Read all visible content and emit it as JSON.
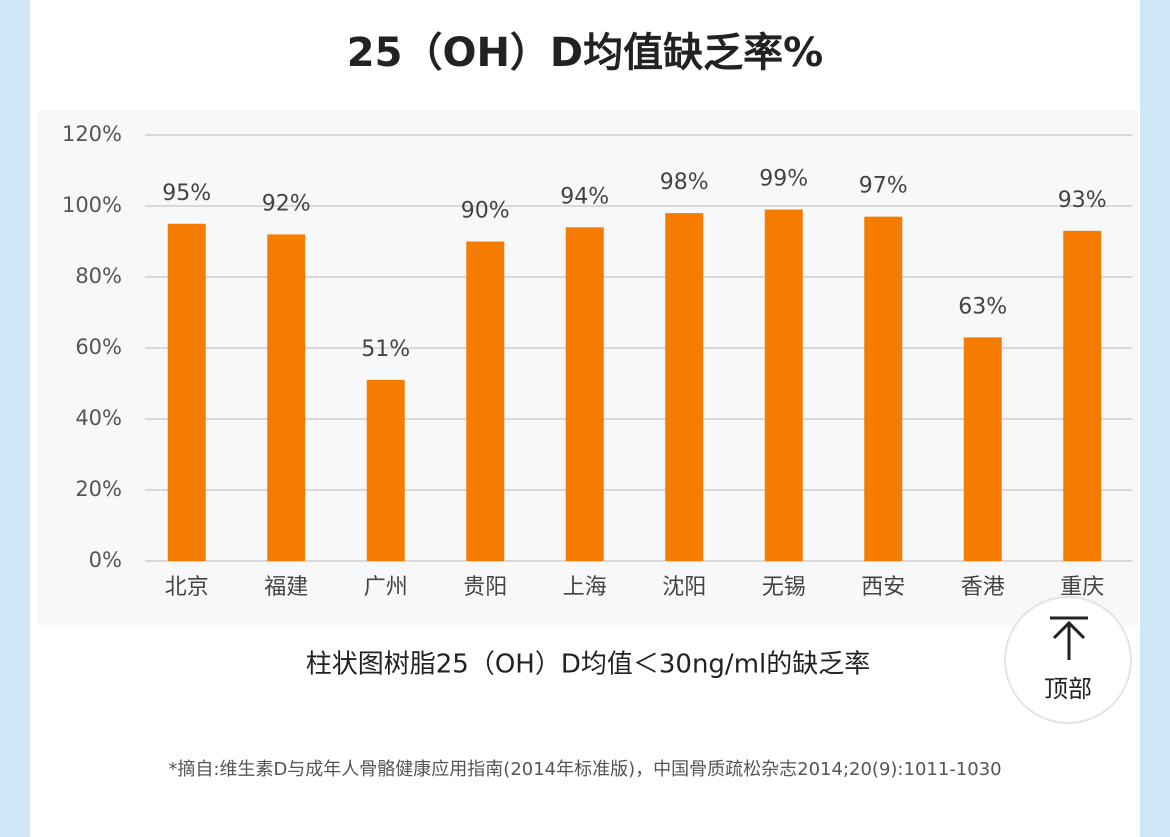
{
  "chart_data": {
    "type": "bar",
    "title": "25（OH）D均值缺乏率%",
    "categories": [
      "北京",
      "福建",
      "广州",
      "贵阳",
      "上海",
      "沈阳",
      "无锡",
      "西安",
      "香港",
      "重庆"
    ],
    "values": [
      95,
      92,
      51,
      90,
      94,
      98,
      99,
      97,
      63,
      93
    ],
    "value_labels": [
      "95%",
      "92%",
      "51%",
      "90%",
      "94%",
      "98%",
      "99%",
      "97%",
      "63%",
      "93%"
    ],
    "color": "#f57c00",
    "ylim": [
      0,
      120
    ],
    "yticks": [
      {
        "value": 0,
        "label": "0%"
      },
      {
        "value": 20,
        "label": "20%"
      },
      {
        "value": 40,
        "label": "40%"
      },
      {
        "value": 60,
        "label": "60%"
      },
      {
        "value": 80,
        "label": "80%"
      },
      {
        "value": 100,
        "label": "100%"
      },
      {
        "value": 120,
        "label": "120%"
      }
    ],
    "grid": true
  },
  "caption": "柱状图树脂25（OH）D均值＜30ng/ml的缺乏率",
  "footnote": "*摘自:维生素D与成年人骨骼健康应用指南(2014年标准版)，中国骨质疏松杂志2014;20(9):1011-1030",
  "back_to_top": "顶部"
}
